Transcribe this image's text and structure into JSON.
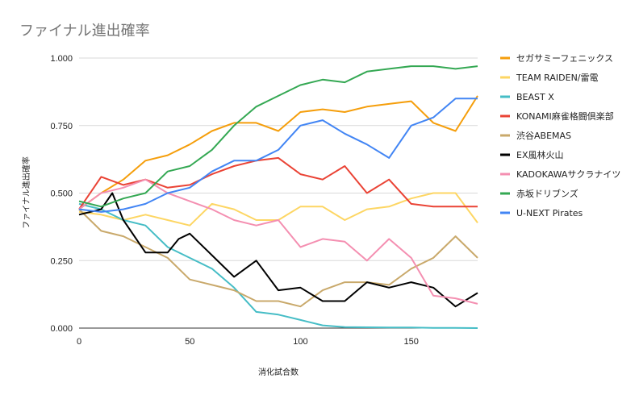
{
  "chart_data": {
    "type": "line",
    "title": "ファイナル進出確率",
    "xlabel": "消化試合数",
    "ylabel": "ファイナル進出確率",
    "xlim": [
      0,
      180
    ],
    "ylim": [
      0,
      1
    ],
    "x_ticks": [
      0,
      50,
      100,
      150
    ],
    "x_tick_labels": [
      "0",
      "50",
      "100",
      "150"
    ],
    "y_ticks": [
      0,
      0.25,
      0.5,
      0.75,
      1.0
    ],
    "y_tick_labels": [
      "0.000",
      "0.250",
      "0.500",
      "0.750",
      "1.000"
    ],
    "grid": true,
    "legend_position": "right",
    "series": [
      {
        "name": "セガサミーフェニックス",
        "color": "#f59e0b",
        "x": [
          0,
          10,
          20,
          30,
          40,
          50,
          60,
          70,
          80,
          90,
          100,
          110,
          120,
          130,
          140,
          150,
          160,
          170,
          180
        ],
        "y": [
          0.44,
          0.5,
          0.55,
          0.62,
          0.64,
          0.68,
          0.73,
          0.76,
          0.76,
          0.73,
          0.8,
          0.81,
          0.8,
          0.82,
          0.83,
          0.84,
          0.76,
          0.73,
          0.86
        ]
      },
      {
        "name": "TEAM RAIDEN/雷電",
        "color": "#fdd663",
        "x": [
          0,
          10,
          20,
          30,
          40,
          50,
          60,
          70,
          80,
          90,
          100,
          110,
          120,
          130,
          140,
          150,
          160,
          170,
          180
        ],
        "y": [
          0.43,
          0.42,
          0.4,
          0.42,
          0.4,
          0.38,
          0.46,
          0.44,
          0.4,
          0.4,
          0.45,
          0.45,
          0.4,
          0.44,
          0.45,
          0.48,
          0.5,
          0.5,
          0.39
        ]
      },
      {
        "name": "BEAST X",
        "color": "#46bdc6",
        "x": [
          0,
          10,
          20,
          30,
          40,
          50,
          60,
          70,
          80,
          90,
          100,
          110,
          120,
          130,
          140,
          150,
          160,
          170,
          180
        ],
        "y": [
          0.46,
          0.44,
          0.4,
          0.38,
          0.3,
          0.26,
          0.22,
          0.15,
          0.06,
          0.05,
          0.03,
          0.01,
          0.004,
          0.003,
          0.002,
          0.002,
          0.001,
          0.001,
          0.0
        ]
      },
      {
        "name": "KONAMI麻雀格闘倶楽部",
        "color": "#ea4335",
        "x": [
          0,
          10,
          20,
          30,
          40,
          50,
          60,
          70,
          80,
          90,
          100,
          110,
          120,
          130,
          140,
          150,
          160,
          170,
          180
        ],
        "y": [
          0.44,
          0.56,
          0.53,
          0.55,
          0.52,
          0.53,
          0.57,
          0.6,
          0.62,
          0.63,
          0.57,
          0.55,
          0.6,
          0.5,
          0.55,
          0.46,
          0.45,
          0.45,
          0.45
        ]
      },
      {
        "name": "渋谷ABEMAS",
        "color": "#c9a96b",
        "x": [
          0,
          10,
          20,
          30,
          40,
          50,
          60,
          70,
          80,
          90,
          100,
          110,
          120,
          130,
          140,
          150,
          160,
          170,
          180
        ],
        "y": [
          0.44,
          0.36,
          0.34,
          0.3,
          0.26,
          0.18,
          0.16,
          0.14,
          0.1,
          0.1,
          0.08,
          0.14,
          0.17,
          0.17,
          0.16,
          0.22,
          0.26,
          0.34,
          0.26
        ]
      },
      {
        "name": "EX風林火山",
        "color": "#000000",
        "x": [
          0,
          10,
          15,
          20,
          30,
          40,
          45,
          50,
          60,
          70,
          80,
          90,
          100,
          110,
          120,
          130,
          140,
          150,
          160,
          170,
          180
        ],
        "y": [
          0.42,
          0.44,
          0.5,
          0.4,
          0.28,
          0.28,
          0.33,
          0.35,
          0.27,
          0.19,
          0.25,
          0.14,
          0.15,
          0.1,
          0.1,
          0.17,
          0.15,
          0.17,
          0.15,
          0.08,
          0.13
        ]
      },
      {
        "name": "KADOKAWAサクラナイツ",
        "color": "#f48fb1",
        "x": [
          0,
          10,
          20,
          30,
          40,
          50,
          60,
          70,
          80,
          90,
          100,
          110,
          120,
          130,
          140,
          150,
          160,
          170,
          180
        ],
        "y": [
          0.44,
          0.5,
          0.52,
          0.55,
          0.5,
          0.47,
          0.44,
          0.4,
          0.38,
          0.4,
          0.3,
          0.33,
          0.32,
          0.25,
          0.33,
          0.26,
          0.12,
          0.11,
          0.09
        ]
      },
      {
        "name": "赤坂ドリブンズ",
        "color": "#34a853",
        "x": [
          0,
          10,
          20,
          30,
          40,
          50,
          60,
          70,
          80,
          90,
          100,
          110,
          120,
          130,
          140,
          150,
          160,
          170,
          180
        ],
        "y": [
          0.47,
          0.45,
          0.48,
          0.5,
          0.58,
          0.6,
          0.66,
          0.75,
          0.82,
          0.86,
          0.9,
          0.92,
          0.91,
          0.95,
          0.96,
          0.97,
          0.97,
          0.96,
          0.97
        ]
      },
      {
        "name": "U-NEXT Pirates",
        "color": "#4285f4",
        "x": [
          0,
          10,
          20,
          30,
          40,
          50,
          60,
          70,
          80,
          90,
          100,
          110,
          120,
          130,
          140,
          150,
          160,
          170,
          180
        ],
        "y": [
          0.44,
          0.43,
          0.44,
          0.46,
          0.5,
          0.52,
          0.58,
          0.62,
          0.62,
          0.66,
          0.75,
          0.77,
          0.72,
          0.68,
          0.63,
          0.75,
          0.78,
          0.85,
          0.85
        ]
      }
    ]
  }
}
